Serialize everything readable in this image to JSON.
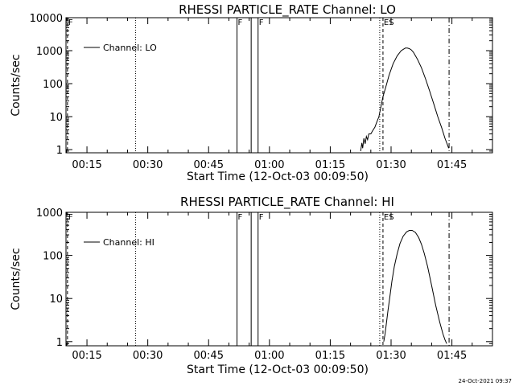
{
  "timestamp": "24-Oct-2021 09:37",
  "chart_data": [
    {
      "type": "line",
      "title": "RHESSI PARTICLE_RATE Channel: LO",
      "xlabel": "Start Time (12-Oct-03 00:09:50)",
      "ylabel": "Counts/sec",
      "yscale": "log",
      "ylim": [
        0.8,
        10000
      ],
      "xlim_minutes": [
        9.83,
        115
      ],
      "x_tick_minutes": [
        15,
        30,
        45,
        60,
        75,
        90,
        105
      ],
      "x_tick_labels": [
        "00:15",
        "00:30",
        "00:45",
        "01:00",
        "01:15",
        "01:30",
        "01:45"
      ],
      "y_tick_values": [
        1,
        10,
        100,
        1000,
        10000
      ],
      "y_tick_labels": [
        "1",
        "10",
        "100",
        "1000",
        "10000"
      ],
      "legend": {
        "label": "Channel: LO",
        "position": "top-left"
      },
      "markers": [
        {
          "minute": 10.2,
          "style": "dash",
          "label": "F"
        },
        {
          "minute": 27.0,
          "style": "dot",
          "label": ""
        },
        {
          "minute": 52.0,
          "style": "solid",
          "label": "F"
        },
        {
          "minute": 55.5,
          "style": "solid",
          "label": ""
        },
        {
          "minute": 57.2,
          "style": "solid",
          "label": "F"
        },
        {
          "minute": 87.2,
          "style": "dot",
          "label": ""
        },
        {
          "minute": 88.0,
          "style": "dash",
          "label": "ES"
        },
        {
          "minute": 104.3,
          "style": "dashdot",
          "label": ""
        }
      ],
      "series": [
        {
          "name": "Channel: LO",
          "x": [
            82.5,
            82.8,
            83.0,
            83.3,
            83.6,
            83.9,
            84.2,
            84.5,
            85.0,
            85.5,
            86.0,
            86.5,
            87.0,
            87.5,
            88.0,
            88.7,
            89.5,
            90.5,
            91.5,
            92.5,
            93.5,
            94.0,
            94.5,
            95.0,
            95.5,
            96.5,
            97.5,
            98.5,
            99.5,
            100.5,
            101.5,
            102.5,
            103.3,
            103.8,
            104.2
          ],
          "values": [
            0.9,
            1.6,
            1.1,
            2.2,
            1.5,
            2.5,
            2.0,
            3.0,
            3.0,
            3.8,
            4.8,
            7.0,
            10,
            20,
            40,
            80,
            180,
            400,
            700,
            1000,
            1200,
            1200,
            1150,
            1050,
            900,
            550,
            300,
            140,
            60,
            25,
            10,
            4.5,
            2.2,
            1.5,
            1.1
          ]
        }
      ]
    },
    {
      "type": "line",
      "title": "RHESSI PARTICLE_RATE Channel: HI",
      "xlabel": "Start Time (12-Oct-03 00:09:50)",
      "ylabel": "Counts/sec",
      "yscale": "log",
      "ylim": [
        0.8,
        1000
      ],
      "xlim_minutes": [
        9.83,
        115
      ],
      "x_tick_minutes": [
        15,
        30,
        45,
        60,
        75,
        90,
        105
      ],
      "x_tick_labels": [
        "00:15",
        "00:30",
        "00:45",
        "01:00",
        "01:15",
        "01:30",
        "01:45"
      ],
      "y_tick_values": [
        1,
        10,
        100,
        1000
      ],
      "y_tick_labels": [
        "1",
        "10",
        "100",
        "1000"
      ],
      "legend": {
        "label": "Channel: HI",
        "position": "top-left"
      },
      "markers": [
        {
          "minute": 10.2,
          "style": "dash",
          "label": "F"
        },
        {
          "minute": 27.0,
          "style": "dot",
          "label": ""
        },
        {
          "minute": 52.0,
          "style": "solid",
          "label": "F"
        },
        {
          "minute": 55.5,
          "style": "solid",
          "label": ""
        },
        {
          "minute": 57.2,
          "style": "solid",
          "label": "F"
        },
        {
          "minute": 87.2,
          "style": "dot",
          "label": ""
        },
        {
          "minute": 88.0,
          "style": "dash",
          "label": "ES"
        },
        {
          "minute": 104.3,
          "style": "dashdot",
          "label": ""
        }
      ],
      "series": [
        {
          "name": "Channel: HI",
          "x": [
            88.2,
            88.5,
            88.8,
            89.2,
            89.7,
            90.2,
            90.8,
            91.5,
            92.2,
            93.0,
            93.8,
            94.5,
            95.2,
            96.0,
            96.8,
            97.5,
            98.2,
            99.0,
            100.0,
            101.0,
            102.0,
            102.8,
            103.3,
            103.7
          ],
          "values": [
            1.0,
            1.5,
            2.5,
            5,
            11,
            25,
            55,
            110,
            190,
            280,
            350,
            380,
            380,
            340,
            260,
            180,
            110,
            55,
            20,
            7,
            2.8,
            1.5,
            1.1,
            0.9
          ]
        }
      ]
    }
  ]
}
